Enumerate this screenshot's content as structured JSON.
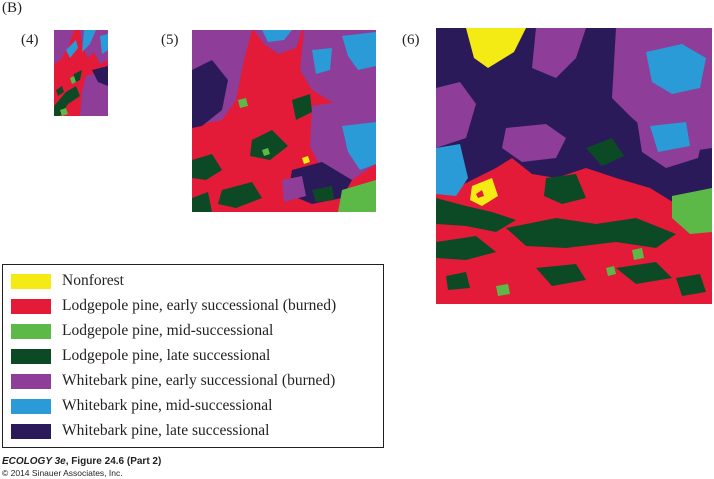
{
  "figure_label": "(B)",
  "panels": [
    {
      "label": "(4)"
    },
    {
      "label": "(5)"
    },
    {
      "label": "(6)"
    }
  ],
  "legend": [
    {
      "label": "Nonforest",
      "color": "#f5eb14"
    },
    {
      "label": "Lodgepole pine, early successional (burned)",
      "color": "#e31b38"
    },
    {
      "label": "Lodgepole pine, mid-successional",
      "color": "#5cb947"
    },
    {
      "label": "Lodgepole pine, late successional",
      "color": "#0c4a26"
    },
    {
      "label": "Whitebark pine, early successional (burned)",
      "color": "#8e3d98"
    },
    {
      "label": "Whitebark pine, mid-successional",
      "color": "#2a9bd6"
    },
    {
      "label": "Whitebark pine, late successional",
      "color": "#2b1a5a"
    }
  ],
  "credit": {
    "book": "ECOLOGY 3e",
    "figure": ", Figure 24.6 (Part 2)",
    "copyright": "© 2014 Sinauer Associates, Inc."
  }
}
